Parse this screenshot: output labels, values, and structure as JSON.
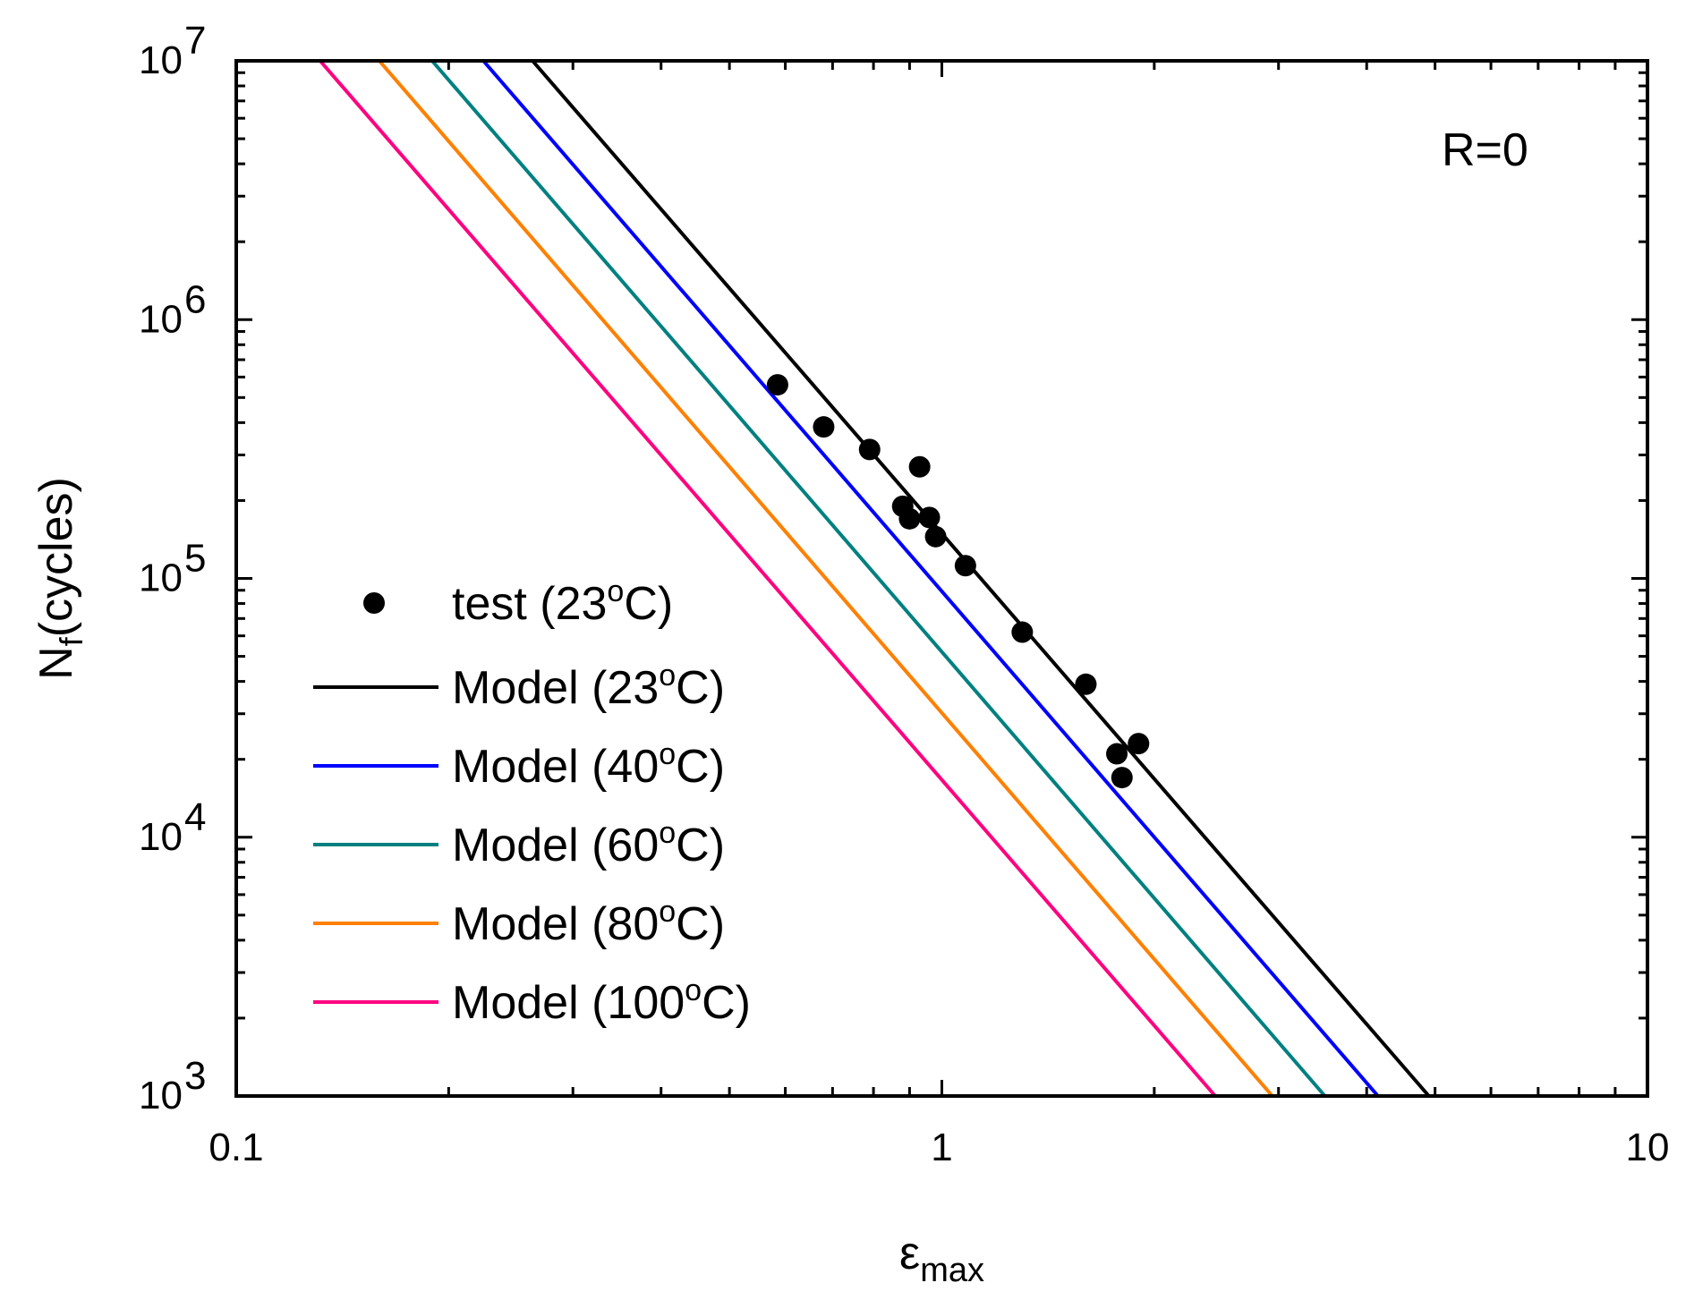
{
  "chart_data": {
    "type": "line",
    "title": "",
    "xlabel": {
      "main": "ε",
      "sub": "max"
    },
    "ylabel": {
      "main": "N",
      "sub": "f",
      "rest": "(cycles)"
    },
    "xscale": "log",
    "yscale": "log",
    "xlim": [
      0.1,
      10
    ],
    "ylim": [
      1000,
      10000000
    ],
    "grid": false,
    "x_tick_labels": [
      "0.1",
      "1",
      "10"
    ],
    "y_tick_labels": [
      {
        "base": "10",
        "exp": "3",
        "value": 1000
      },
      {
        "base": "10",
        "exp": "4",
        "value": 10000
      },
      {
        "base": "10",
        "exp": "5",
        "value": 100000
      },
      {
        "base": "10",
        "exp": "6",
        "value": 1000000
      },
      {
        "base": "10",
        "exp": "7",
        "value": 10000000
      }
    ],
    "annotation": "R=0",
    "legend_position": "lower-left",
    "scatter": {
      "name": "test (23°C)",
      "legend": {
        "pre": "test (23",
        "sup": "o",
        "post": "C)"
      },
      "color": "#000000",
      "points": [
        [
          0.585,
          560000
        ],
        [
          0.68,
          385000
        ],
        [
          0.79,
          315000
        ],
        [
          0.93,
          270000
        ],
        [
          0.88,
          190000
        ],
        [
          0.9,
          170000
        ],
        [
          0.96,
          172000
        ],
        [
          0.98,
          145000
        ],
        [
          1.08,
          112000
        ],
        [
          1.3,
          62000
        ],
        [
          1.6,
          39000
        ],
        [
          1.77,
          21000
        ],
        [
          1.8,
          17000
        ],
        [
          1.9,
          23000
        ]
      ]
    },
    "series": [
      {
        "name": "Model (23°C)",
        "legend": {
          "pre": "Model (23",
          "sup": "o",
          "post": "C)"
        },
        "color": "#000000",
        "x": [
          0.263,
          4.9
        ],
        "y": [
          10000000,
          1000
        ]
      },
      {
        "name": "Model (40°C)",
        "legend": {
          "pre": "Model (40",
          "sup": "o",
          "post": "C)"
        },
        "color": "#0000ff",
        "x": [
          0.224,
          4.15
        ],
        "y": [
          10000000,
          1000
        ]
      },
      {
        "name": "Model (60°C)",
        "legend": {
          "pre": "Model (60",
          "sup": "o",
          "post": "C)"
        },
        "color": "#008080",
        "x": [
          0.1895,
          3.49
        ],
        "y": [
          10000000,
          1000
        ]
      },
      {
        "name": "Model (80°C)",
        "legend": {
          "pre": "Model (80",
          "sup": "o",
          "post": "C)"
        },
        "color": "#ff8000",
        "x": [
          0.1595,
          2.94
        ],
        "y": [
          10000000,
          1000
        ]
      },
      {
        "name": "Model (100°C)",
        "legend": {
          "pre": "Model (100",
          "sup": "o",
          "post": "C)"
        },
        "color": "#ff0080",
        "x": [
          0.1315,
          2.44
        ],
        "y": [
          10000000,
          1000
        ]
      }
    ]
  }
}
